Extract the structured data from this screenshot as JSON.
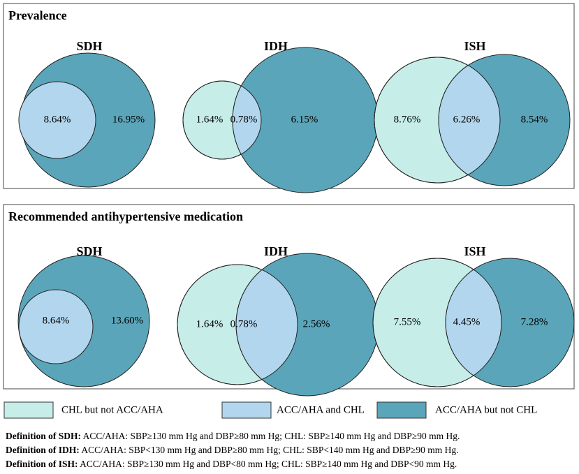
{
  "panels": [
    {
      "title": "Prevalence",
      "diagrams": [
        {
          "name": "SDH",
          "labels": [
            "8.64%",
            "16.95%"
          ]
        },
        {
          "name": "IDH",
          "labels": [
            "1.64%",
            "0.78%",
            "6.15%"
          ]
        },
        {
          "name": "ISH",
          "labels": [
            "8.76%",
            "6.26%",
            "8.54%"
          ]
        }
      ]
    },
    {
      "title": "Recommended antihypertensive medication",
      "diagrams": [
        {
          "name": "SDH",
          "labels": [
            "8.64%",
            "13.60%"
          ]
        },
        {
          "name": "IDH",
          "labels": [
            "1.64%",
            "0.78%",
            "2.56%"
          ]
        },
        {
          "name": "ISH",
          "labels": [
            "7.55%",
            "4.45%",
            "7.28%"
          ]
        }
      ]
    }
  ],
  "legend": [
    "CHL but not ACC/AHA",
    "ACC/AHA and CHL",
    "ACC/AHA but not CHL"
  ],
  "definitions": [
    {
      "label": "Definition of SDH:",
      "text": " ACC/AHA: SBP≥130 mm Hg and  DBP≥80 mm Hg; CHL:  SBP≥140 mm Hg and DBP≥90 mm Hg."
    },
    {
      "label": "Definition of IDH:",
      "text": " ACC/AHA: SBP<130 mm Hg and DBP≥80 mm Hg; CHL:  SBP<140 mm Hg and DBP≥90 mm Hg."
    },
    {
      "label": "Definition of ISH:",
      "text": " ACC/AHA:  SBP≥130 mm Hg and DBP<80  mm Hg; CHL: SBP≥140 mm Hg and DBP<90 mm Hg."
    }
  ]
}
